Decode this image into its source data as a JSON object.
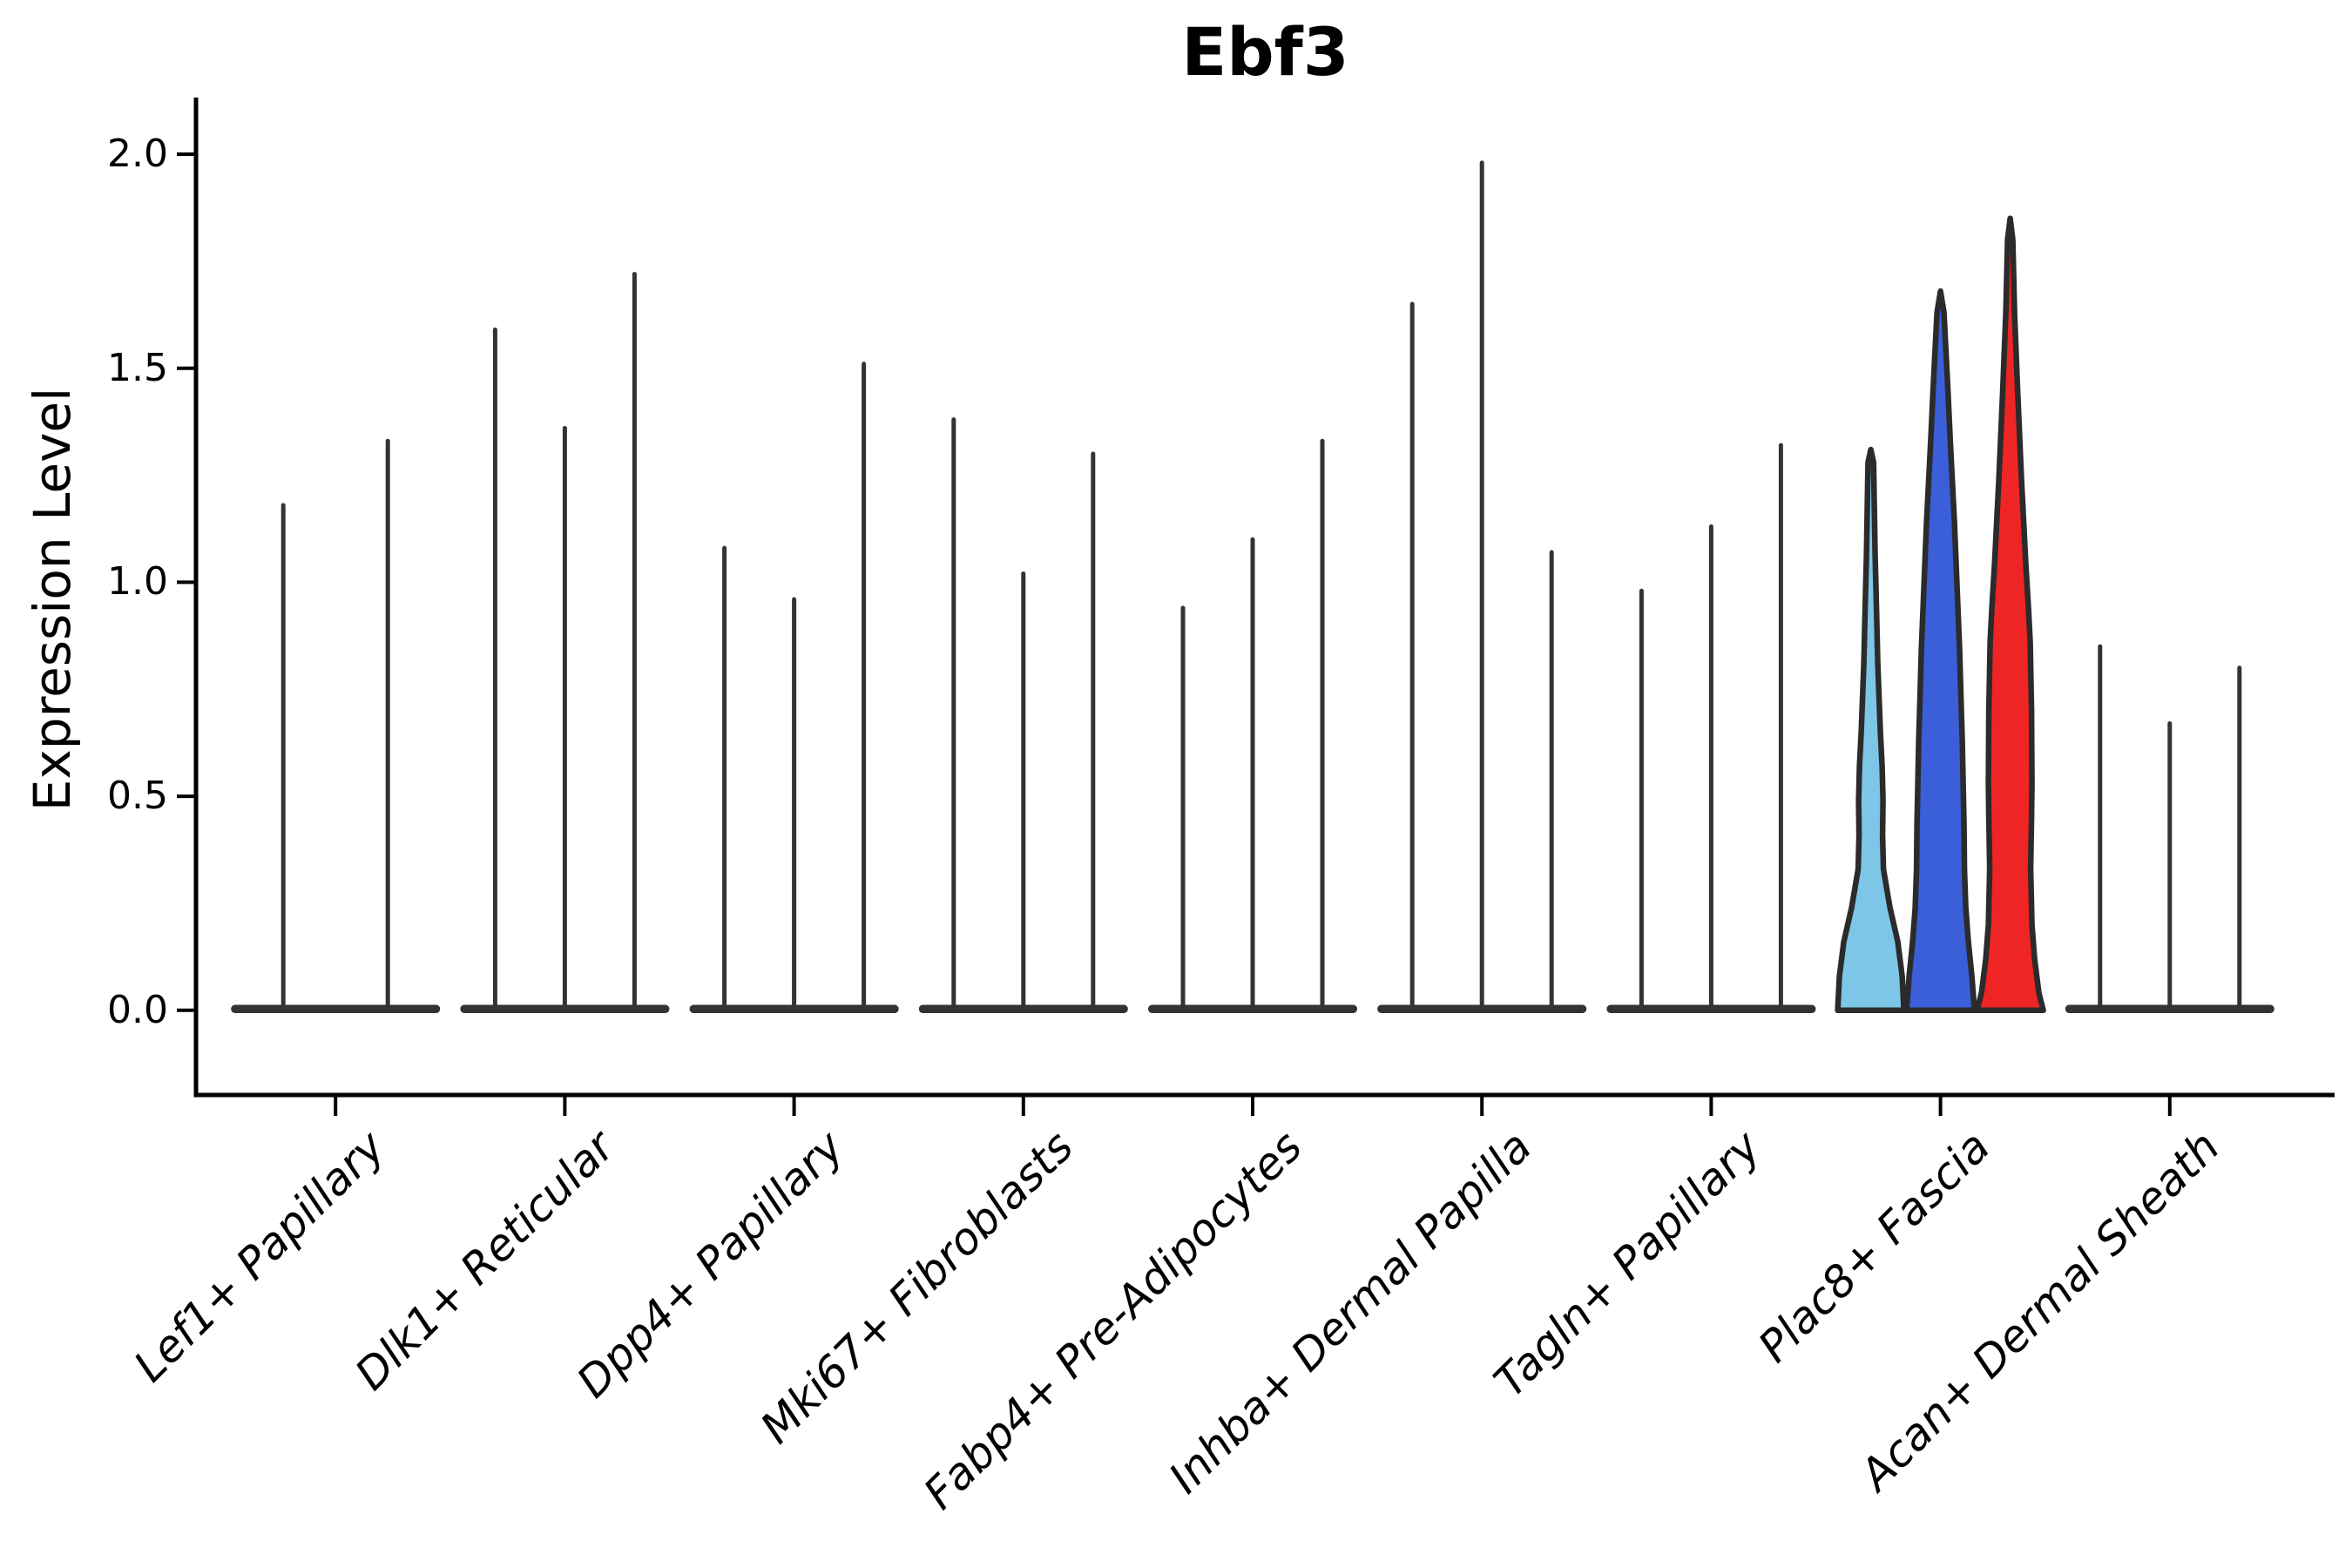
{
  "title": "Ebf3",
  "axes": {
    "ylabel": "Expression Level",
    "yticks": [
      "2.0",
      "1.5",
      "1.0",
      "0.5",
      "0.0"
    ]
  },
  "chart_data": {
    "type": "violin",
    "title": "Ebf3",
    "xlabel": "",
    "ylabel": "Expression Level",
    "ylim": [
      0,
      2.13
    ],
    "ytick_values": [
      2.0,
      1.5,
      1.0,
      0.5,
      0.0
    ],
    "grid": false,
    "legend": null,
    "line_color": "#333333",
    "outline_color": "#2b2b2b",
    "spine_color": "#000000",
    "highlight_colors": {
      "light_blue": "#7ec6e8",
      "blue": "#3a5fd8",
      "red": "#ee2524"
    },
    "categories": [
      "Lef1+ Papillary",
      "Dlk1+ Reticular",
      "Dpp4+ Papillary",
      "Mki67+ Fibroblasts",
      "Fabp4+ Pre-Adipocytes",
      "Inhba+ Dermal Papilla",
      "Tagln+ Papillary",
      "Plac8+ Fascia",
      "Acan+ Dermal Sheath"
    ],
    "groups": [
      {
        "category": "Lef1+ Papillary",
        "violins": [
          {
            "max": 1.18
          },
          {
            "max": 1.33
          }
        ]
      },
      {
        "category": "Dlk1+ Reticular",
        "violins": [
          {
            "max": 1.59
          },
          {
            "max": 1.36
          },
          {
            "max": 1.72
          }
        ]
      },
      {
        "category": "Dpp4+ Papillary",
        "violins": [
          {
            "max": 1.08
          },
          {
            "max": 0.96
          },
          {
            "max": 1.51
          }
        ]
      },
      {
        "category": "Mki67+ Fibroblasts",
        "violins": [
          {
            "max": 1.38
          },
          {
            "max": 1.02
          },
          {
            "max": 1.3
          }
        ]
      },
      {
        "category": "Fabp4+ Pre-Adipocytes",
        "violins": [
          {
            "max": 0.94
          },
          {
            "max": 1.1
          },
          {
            "max": 1.33
          }
        ]
      },
      {
        "category": "Inhba+ Dermal Papilla",
        "violins": [
          {
            "max": 1.65
          },
          {
            "max": 1.98
          },
          {
            "max": 1.07
          }
        ]
      },
      {
        "category": "Tagln+ Papillary",
        "violins": [
          {
            "max": 0.98
          },
          {
            "max": 1.13
          },
          {
            "max": 1.32
          }
        ]
      },
      {
        "category": "Plac8+ Fascia",
        "violins": [
          {
            "max": 1.31,
            "fill": "#7ec6e8",
            "profile": [
              [
                0,
                38
              ],
              [
                0.08,
                36
              ],
              [
                0.16,
                31
              ],
              [
                0.24,
                22
              ],
              [
                0.33,
                14.5
              ],
              [
                0.41,
                13.5
              ],
              [
                0.49,
                14
              ],
              [
                0.57,
                13
              ],
              [
                0.65,
                11
              ],
              [
                0.73,
                9.5
              ],
              [
                0.81,
                8
              ],
              [
                0.94,
                6.5
              ],
              [
                1.06,
                5
              ],
              [
                1.18,
                4
              ],
              [
                1.28,
                3.2
              ],
              [
                1.31,
                0
              ]
            ]
          },
          {
            "max": 1.68,
            "fill": "#3a5fd8",
            "profile": [
              [
                0,
                39
              ],
              [
                0.08,
                36
              ],
              [
                0.16,
                32
              ],
              [
                0.24,
                29
              ],
              [
                0.33,
                27.5
              ],
              [
                0.43,
                27
              ],
              [
                0.53,
                26
              ],
              [
                0.63,
                25
              ],
              [
                0.73,
                23.5
              ],
              [
                0.84,
                22
              ],
              [
                0.94,
                20
              ],
              [
                1.04,
                18
              ],
              [
                1.14,
                16
              ],
              [
                1.24,
                13.5
              ],
              [
                1.34,
                11
              ],
              [
                1.45,
                8.5
              ],
              [
                1.55,
                6
              ],
              [
                1.63,
                4
              ],
              [
                1.68,
                0
              ]
            ]
          },
          {
            "max": 1.85,
            "fill": "#ee2524",
            "profile": [
              [
                0,
                38
              ],
              [
                0.04,
                33
              ],
              [
                0.12,
                28
              ],
              [
                0.2,
                25
              ],
              [
                0.33,
                23.5
              ],
              [
                0.45,
                24.5
              ],
              [
                0.53,
                25
              ],
              [
                0.7,
                24.5
              ],
              [
                0.86,
                23
              ],
              [
                0.94,
                21
              ],
              [
                1.04,
                18
              ],
              [
                1.24,
                13
              ],
              [
                1.45,
                8.5
              ],
              [
                1.63,
                5
              ],
              [
                1.8,
                3
              ],
              [
                1.85,
                0
              ]
            ]
          }
        ]
      },
      {
        "category": "Acan+ Dermal Sheath",
        "violins": [
          {
            "max": 0.85
          },
          {
            "max": 0.67
          },
          {
            "max": 0.8
          }
        ]
      }
    ]
  }
}
